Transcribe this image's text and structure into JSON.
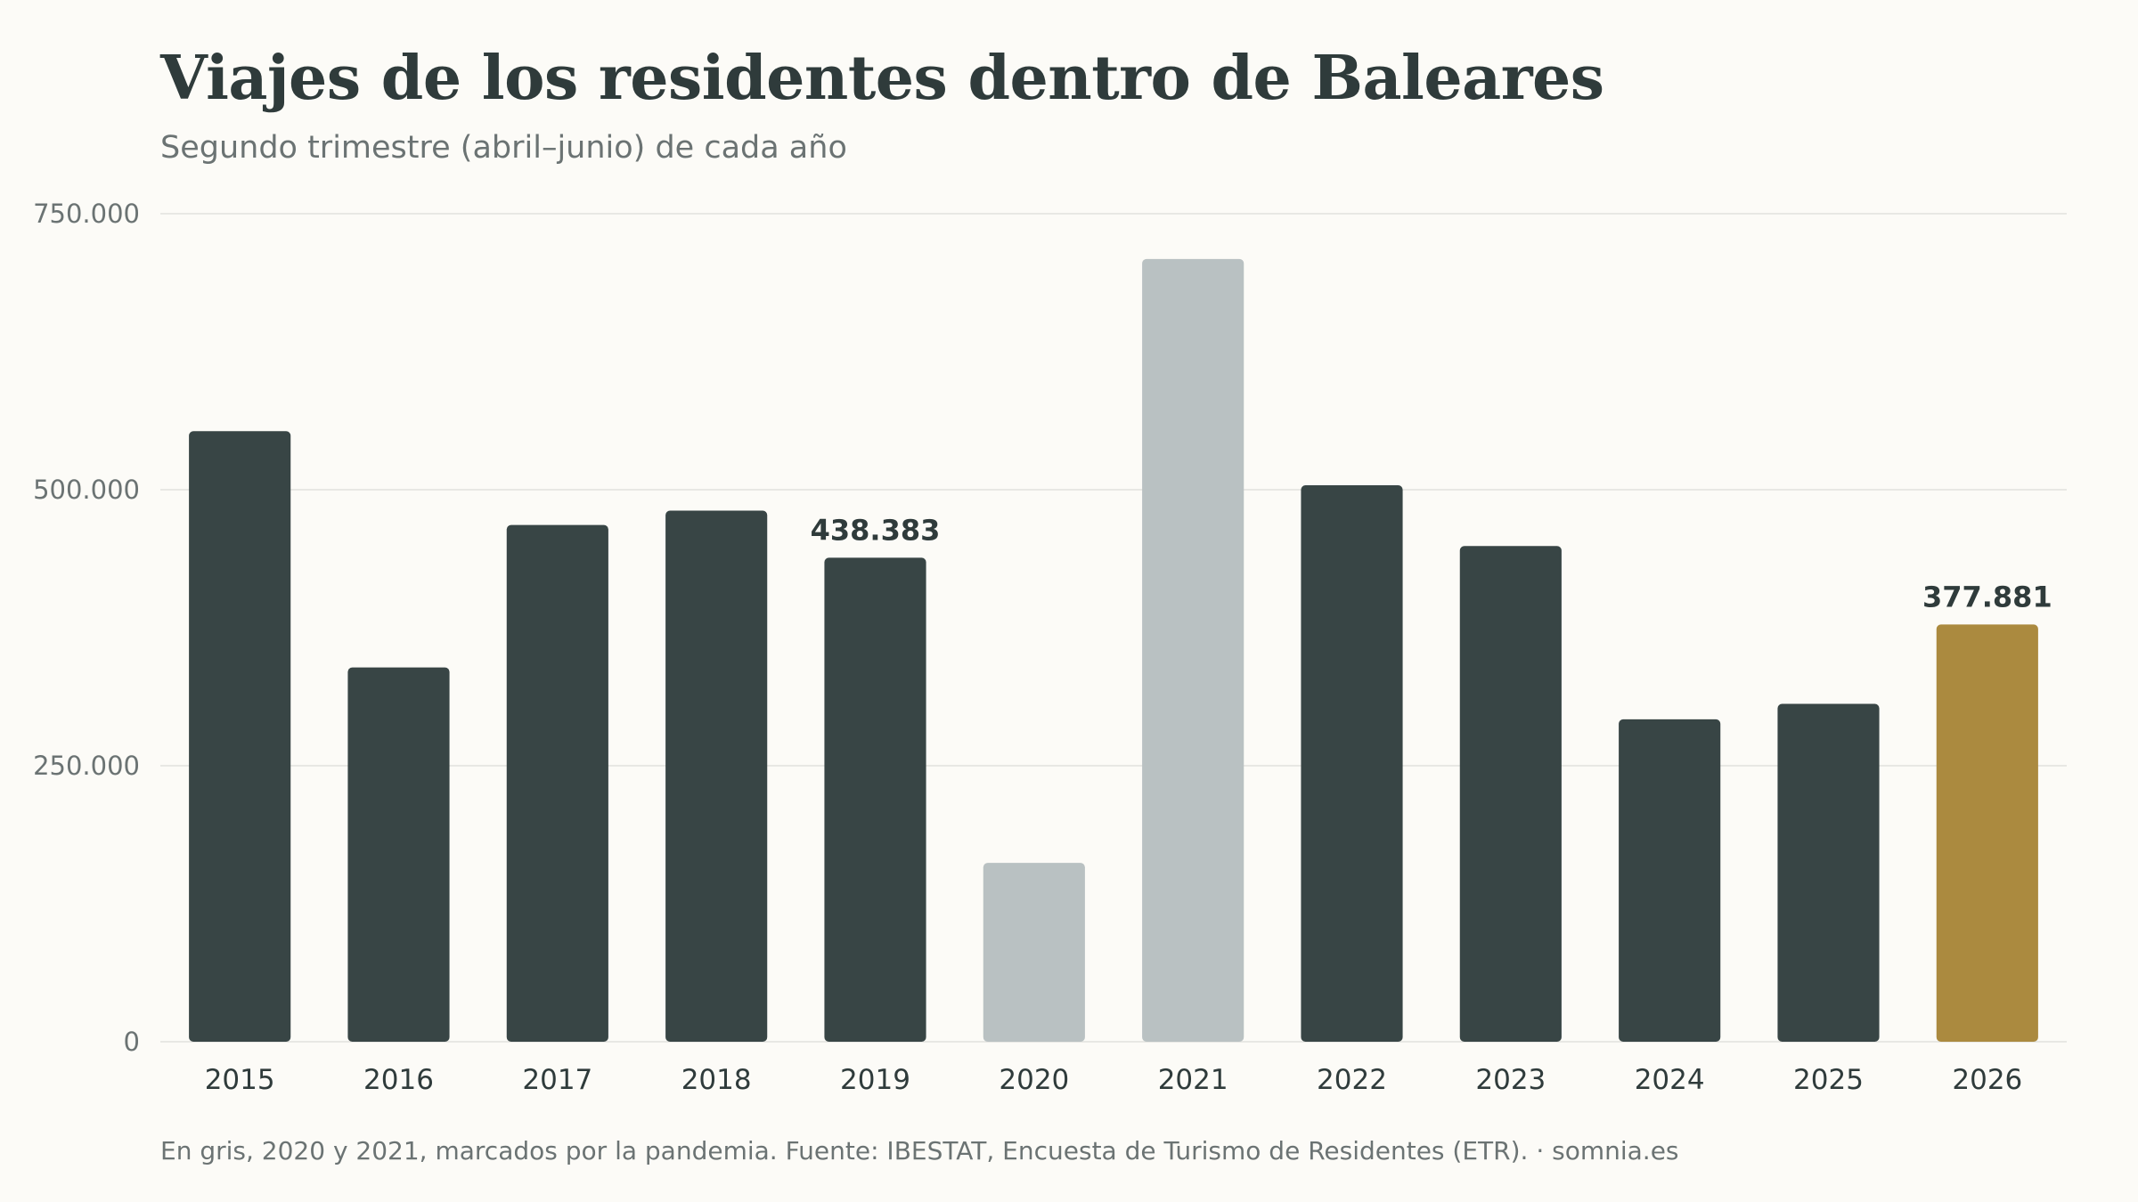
{
  "chart_data": {
    "type": "bar",
    "title": "Viajes de los residentes dentro de Baleares",
    "subtitle": "Segundo trimestre (abril–junio) de cada año",
    "xlabel": "",
    "ylabel": "",
    "categories": [
      "2015",
      "2016",
      "2017",
      "2018",
      "2019",
      "2020",
      "2021",
      "2022",
      "2023",
      "2024",
      "2025",
      "2026"
    ],
    "values": [
      553000,
      339000,
      468000,
      481000,
      438383,
      162000,
      709000,
      504000,
      449000,
      292000,
      306000,
      377881
    ],
    "bar_colors": [
      "#384545",
      "#384545",
      "#384545",
      "#384545",
      "#384545",
      "#b9c1c2",
      "#b9c1c2",
      "#384545",
      "#384545",
      "#384545",
      "#384545",
      "#ab8a3f"
    ],
    "data_labels": [
      "",
      "",
      "",
      "",
      "438.383",
      "",
      "",
      "",
      "",
      "",
      "",
      "377.881"
    ],
    "y_ticks": [
      0,
      250000,
      500000,
      750000
    ],
    "y_tick_labels": [
      "0",
      "250.000",
      "500.000",
      "750.000"
    ],
    "ylim": [
      0,
      750000
    ],
    "grid": true,
    "legend": "none",
    "footnote": "En gris, 2020 y 2021, marcados por la pandemia. Fuente: IBESTAT, Encuesta de Turismo de Residentes (ETR). · somnia.es"
  }
}
